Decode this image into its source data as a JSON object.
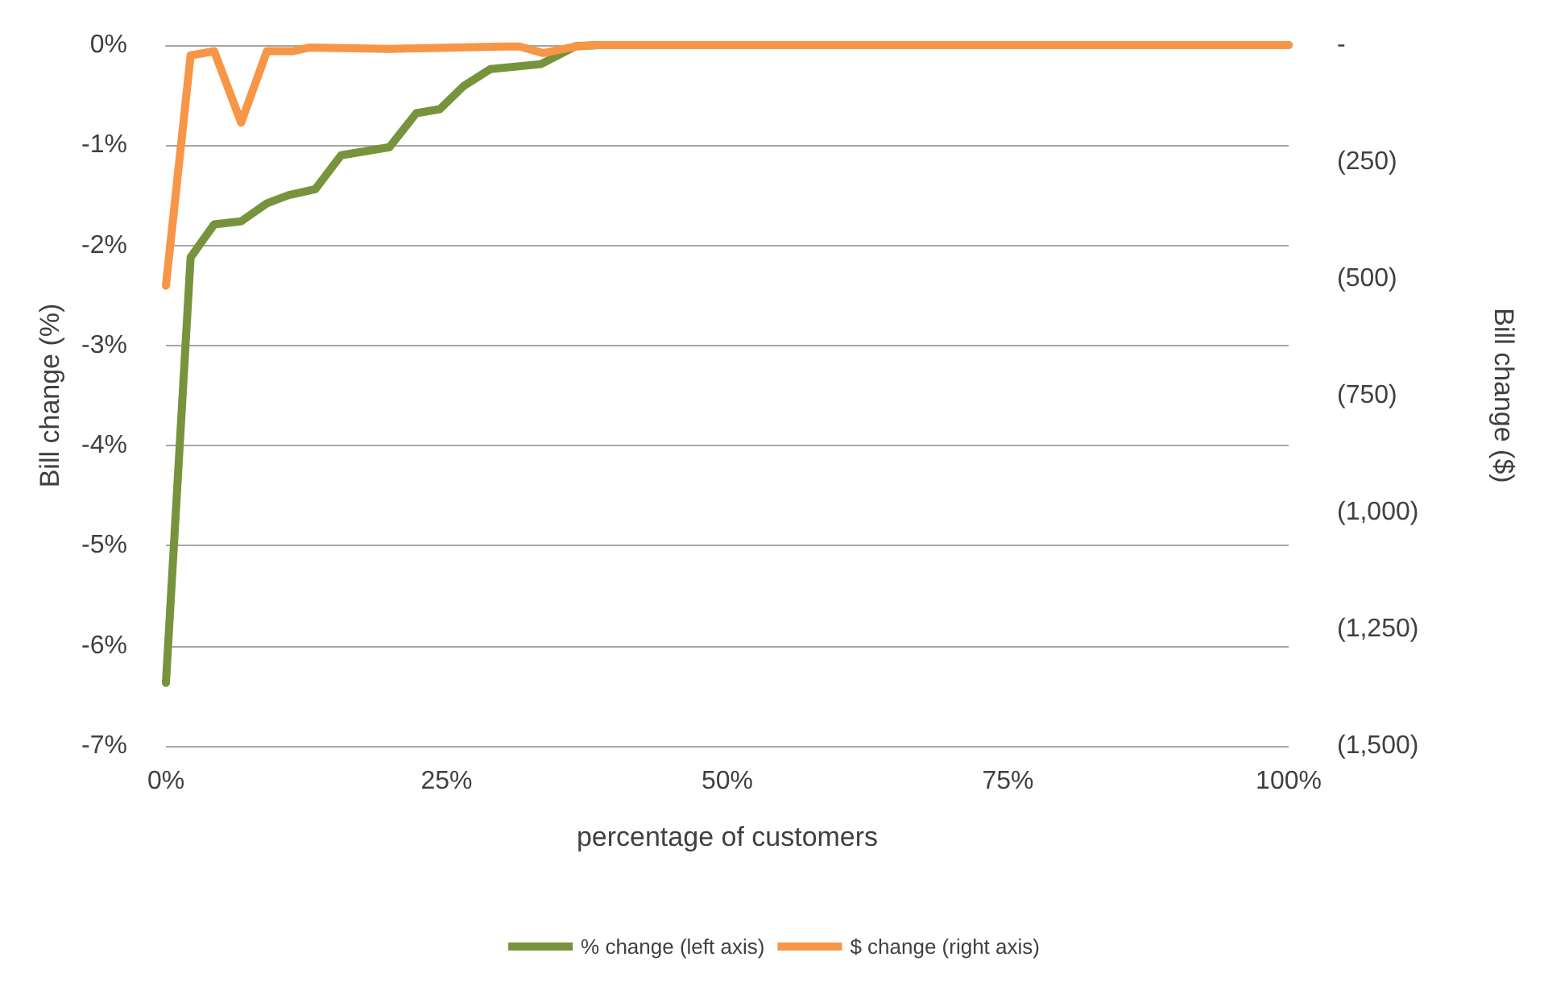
{
  "chart_data": {
    "type": "line",
    "xlabel": "percentage of customers",
    "ylabel": "Bill change (%)",
    "y2label": "Bill change ($)",
    "xlim": [
      0,
      100
    ],
    "xticks": [
      {
        "value": 0,
        "label": "0%"
      },
      {
        "value": 25,
        "label": "25%"
      },
      {
        "value": 50,
        "label": "50%"
      },
      {
        "value": 75,
        "label": "75%"
      },
      {
        "value": 100,
        "label": "100%"
      }
    ],
    "ylim": [
      -7,
      0
    ],
    "yticks": [
      {
        "value": -7,
        "label": "-7%"
      },
      {
        "value": -6,
        "label": "-6%"
      },
      {
        "value": -5,
        "label": "-5%"
      },
      {
        "value": -4,
        "label": "-4%"
      },
      {
        "value": -3,
        "label": "-3%"
      },
      {
        "value": -2,
        "label": "-2%"
      },
      {
        "value": -1,
        "label": "-1%"
      },
      {
        "value": 0,
        "label": "0%"
      }
    ],
    "y2lim": [
      -1500,
      0
    ],
    "y2ticks": [
      {
        "value": -1500,
        "label": "(1,500)"
      },
      {
        "value": -1250,
        "label": "(1,250)"
      },
      {
        "value": -1000,
        "label": "(1,000)"
      },
      {
        "value": -750,
        "label": "(750)"
      },
      {
        "value": -500,
        "label": "(500)"
      },
      {
        "value": -250,
        "label": "(250)"
      },
      {
        "value": 0,
        "label": "-"
      }
    ],
    "grid": "y",
    "legend": "bottom",
    "marker": "none",
    "line_style": "solid",
    "series": [
      {
        "name": "% change (left axis)",
        "color": "#77933c",
        "x": [
          0,
          2.2,
          4.3,
          6.7,
          9.0,
          10.9,
          13.3,
          15.6,
          19.9,
          22.3,
          24.4,
          26.5,
          28.9,
          33.4,
          36.5,
          38.5,
          100
        ],
        "values": [
          -6.37,
          -2.12,
          -1.79,
          -1.76,
          -1.58,
          -1.5,
          -1.44,
          -1.1,
          -1.02,
          -0.68,
          -0.64,
          -0.41,
          -0.24,
          -0.19,
          -0.01,
          0,
          0
        ]
      },
      {
        "name": "$ change (right axis)",
        "color": "#f79646",
        "axis": "y2",
        "x": [
          0,
          2.2,
          4.3,
          6.7,
          9.0,
          11.3,
          12.8,
          20,
          30,
          31.5,
          33.6,
          36.5,
          38.5,
          100
        ],
        "values": [
          -515,
          -22,
          -13,
          -166,
          -13,
          -13,
          -5,
          -8,
          -3,
          -3,
          -17,
          -3,
          0,
          0
        ]
      }
    ]
  }
}
